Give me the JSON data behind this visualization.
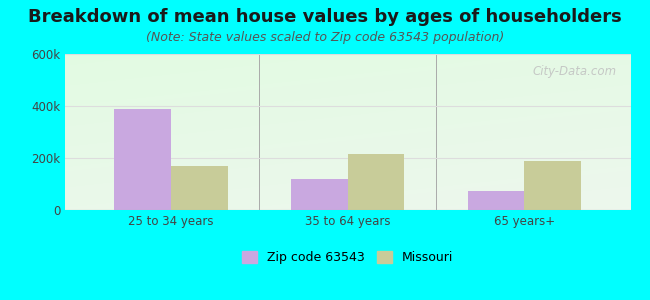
{
  "title": "Breakdown of mean house values by ages of householders",
  "subtitle": "(Note: State values scaled to Zip code 63543 population)",
  "categories": [
    "25 to 34 years",
    "35 to 64 years",
    "65 years+"
  ],
  "zip_values": [
    390000,
    120000,
    75000
  ],
  "state_values": [
    170000,
    215000,
    190000
  ],
  "ylim": [
    0,
    600000
  ],
  "yticks": [
    0,
    200000,
    400000,
    600000
  ],
  "ytick_labels": [
    "0",
    "200k",
    "400k",
    "600k"
  ],
  "zip_color": "#c9a8e0",
  "state_color": "#c8cc99",
  "background_outer": "#00ffff",
  "legend_zip_label": "Zip code 63543",
  "legend_state_label": "Missouri",
  "bar_width": 0.32,
  "watermark": "City-Data.com",
  "title_fontsize": 13,
  "subtitle_fontsize": 9,
  "grid_color": "#dddddd"
}
